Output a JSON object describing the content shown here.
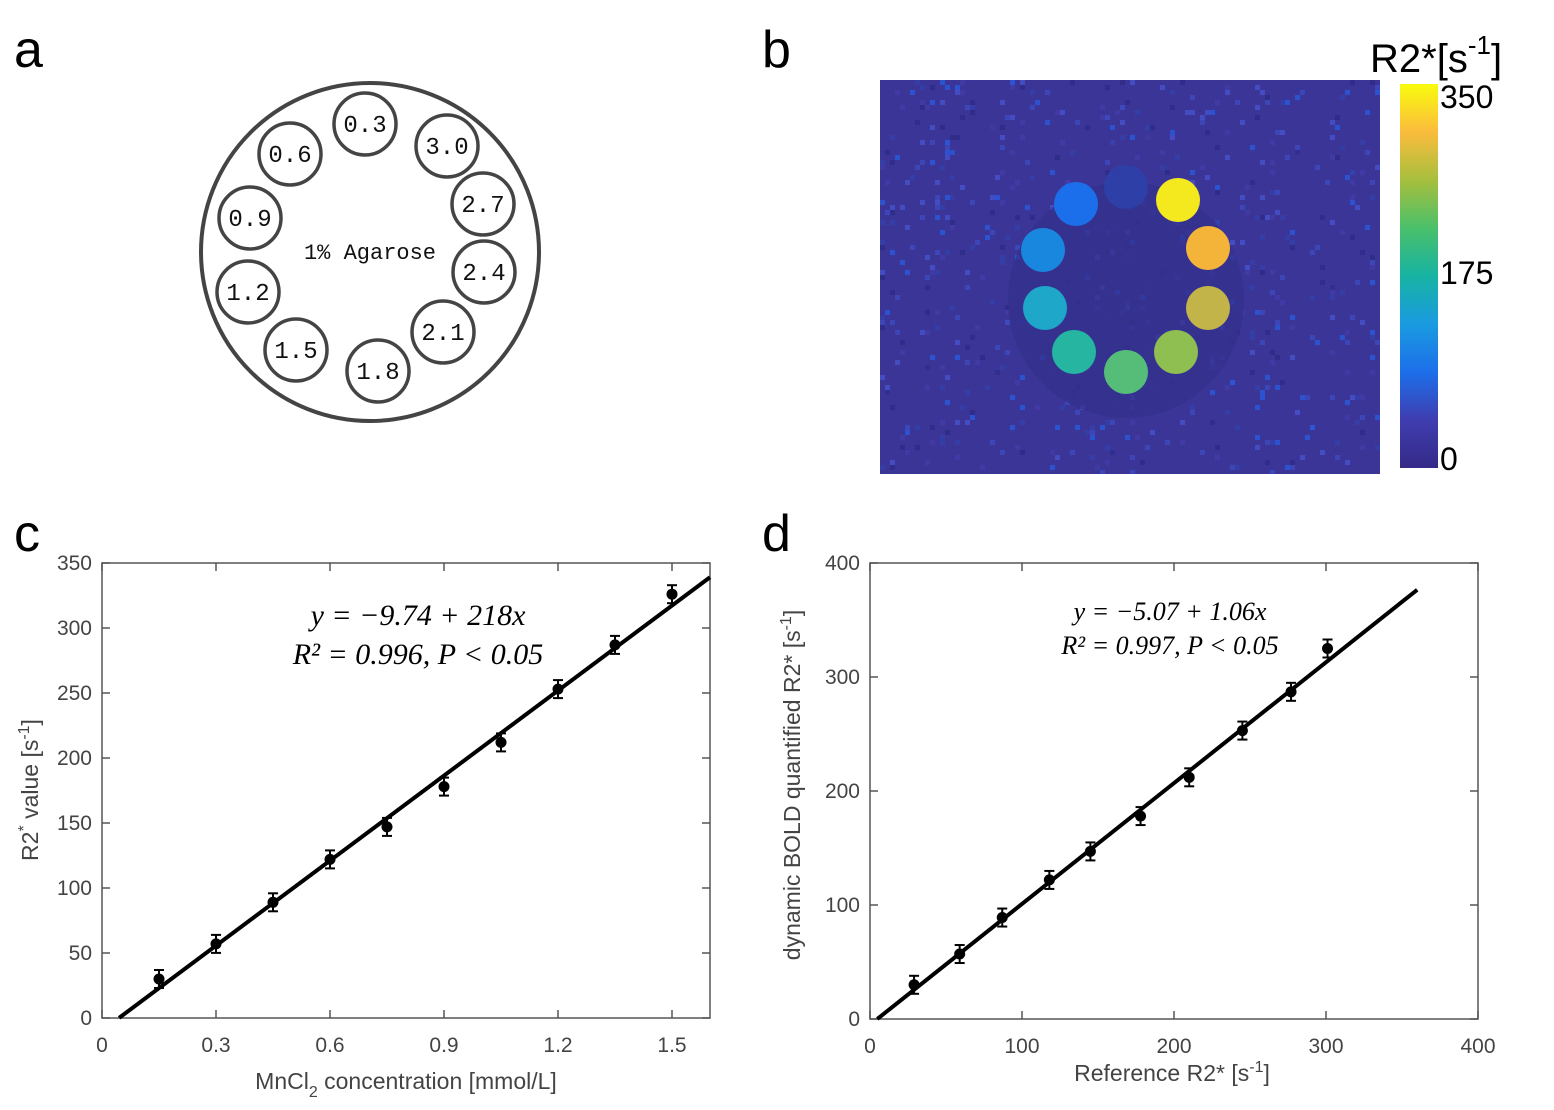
{
  "panels": {
    "a": "a",
    "b": "b",
    "c": "c",
    "d": "d"
  },
  "phantom": {
    "center_label": "1% Agarose",
    "tubes": [
      "0.3",
      "3.0",
      "2.7",
      "2.4",
      "2.1",
      "1.8",
      "1.5",
      "1.2",
      "0.9",
      "0.6"
    ]
  },
  "colorbar": {
    "title_main": "R2*[s",
    "title_sup": "-1",
    "title_end": "]",
    "ticks": [
      "350",
      "175",
      "0"
    ],
    "colors": [
      "#f9fb0e",
      "#fbbc3d",
      "#a7bf3d",
      "#4ac06a",
      "#17b3a3",
      "#1a9be0",
      "#1d6fea",
      "#3f3db0",
      "#352a87"
    ]
  },
  "chart_data": [
    {
      "type": "scatter",
      "panel": "c",
      "x": [
        0.15,
        0.3,
        0.45,
        0.6,
        0.75,
        0.9,
        1.05,
        1.2,
        1.35,
        1.5
      ],
      "y": [
        30,
        57,
        89,
        122,
        147,
        178,
        212,
        253,
        287,
        326
      ],
      "fit": {
        "intercept": -9.74,
        "slope": 218,
        "x_range": [
          0.045,
          1.6
        ]
      },
      "equation_line1": "y = −9.74 + 218x",
      "equation_line2": "R² = 0.996, P < 0.05",
      "xlim": [
        0,
        1.6
      ],
      "ylim": [
        0,
        350
      ],
      "xticks": [
        0,
        0.3,
        0.6,
        0.9,
        1.2,
        1.5
      ],
      "xtick_labels": [
        "0",
        "0.3",
        "0.6",
        "0.9",
        "1.2",
        "1.5"
      ],
      "yticks": [
        0,
        50,
        100,
        150,
        200,
        250,
        300,
        350
      ],
      "ytick_labels": [
        "0",
        "50",
        "100",
        "150",
        "200",
        "250",
        "300",
        "350"
      ],
      "xlabel": {
        "pre": "MnCl",
        "sub": "2",
        "post": " concentration [mmol/L]"
      },
      "ylabel": {
        "pre": "R2",
        "sup": "*",
        "mid": " value [s",
        "sup2": "-1",
        "post": "]"
      }
    },
    {
      "type": "scatter",
      "panel": "d",
      "x": [
        29,
        59,
        87,
        118,
        145,
        178,
        210,
        245,
        277,
        301
      ],
      "y": [
        30,
        57,
        89,
        122,
        147,
        178,
        212,
        253,
        287,
        325
      ],
      "fit": {
        "intercept": -5.07,
        "slope": 1.06,
        "x_range": [
          4.8,
          360
        ]
      },
      "equation_line1": "y = −5.07 + 1.06x",
      "equation_line2": "R² = 0.997, P < 0.05",
      "xlim": [
        0,
        400
      ],
      "ylim": [
        0,
        400
      ],
      "xticks": [
        0,
        100,
        200,
        300,
        400
      ],
      "xtick_labels": [
        "0",
        "100",
        "200",
        "300",
        "400"
      ],
      "yticks": [
        0,
        100,
        200,
        300,
        400
      ],
      "ytick_labels": [
        "0",
        "100",
        "200",
        "300",
        "400"
      ],
      "xlabel": {
        "pre": "Reference R2* [s",
        "sup": "-1",
        "post": "]"
      },
      "ylabel": {
        "pre": "dynamic BOLD quantified R2* [s",
        "sup": "-1",
        "post": "]"
      }
    }
  ]
}
